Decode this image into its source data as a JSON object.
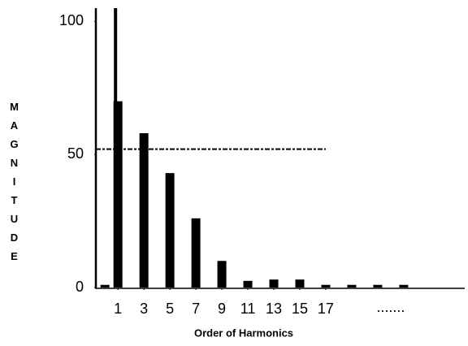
{
  "chart_data": {
    "type": "bar",
    "x_label": "Order of Harmonics",
    "y_label": "MAGNITUDE",
    "x": [
      0,
      1,
      3,
      5,
      7,
      9,
      11,
      13,
      15,
      17,
      19,
      21,
      23
    ],
    "values": [
      1,
      70,
      58,
      43,
      26,
      10,
      2.5,
      3,
      3,
      1,
      1,
      1,
      1
    ],
    "color": "#000000",
    "stem": {
      "x": 1,
      "value": 105
    },
    "reference_line": {
      "value": 52,
      "x_end": 17
    },
    "annotation": {
      "text": ".......",
      "x": 22
    },
    "xlim": [
      -0.7,
      27.7
    ],
    "xticks": [
      1,
      3,
      5,
      7,
      9,
      11,
      13,
      15,
      17
    ],
    "ylim": [
      0,
      105
    ],
    "yticks": [
      0,
      50,
      100
    ]
  }
}
